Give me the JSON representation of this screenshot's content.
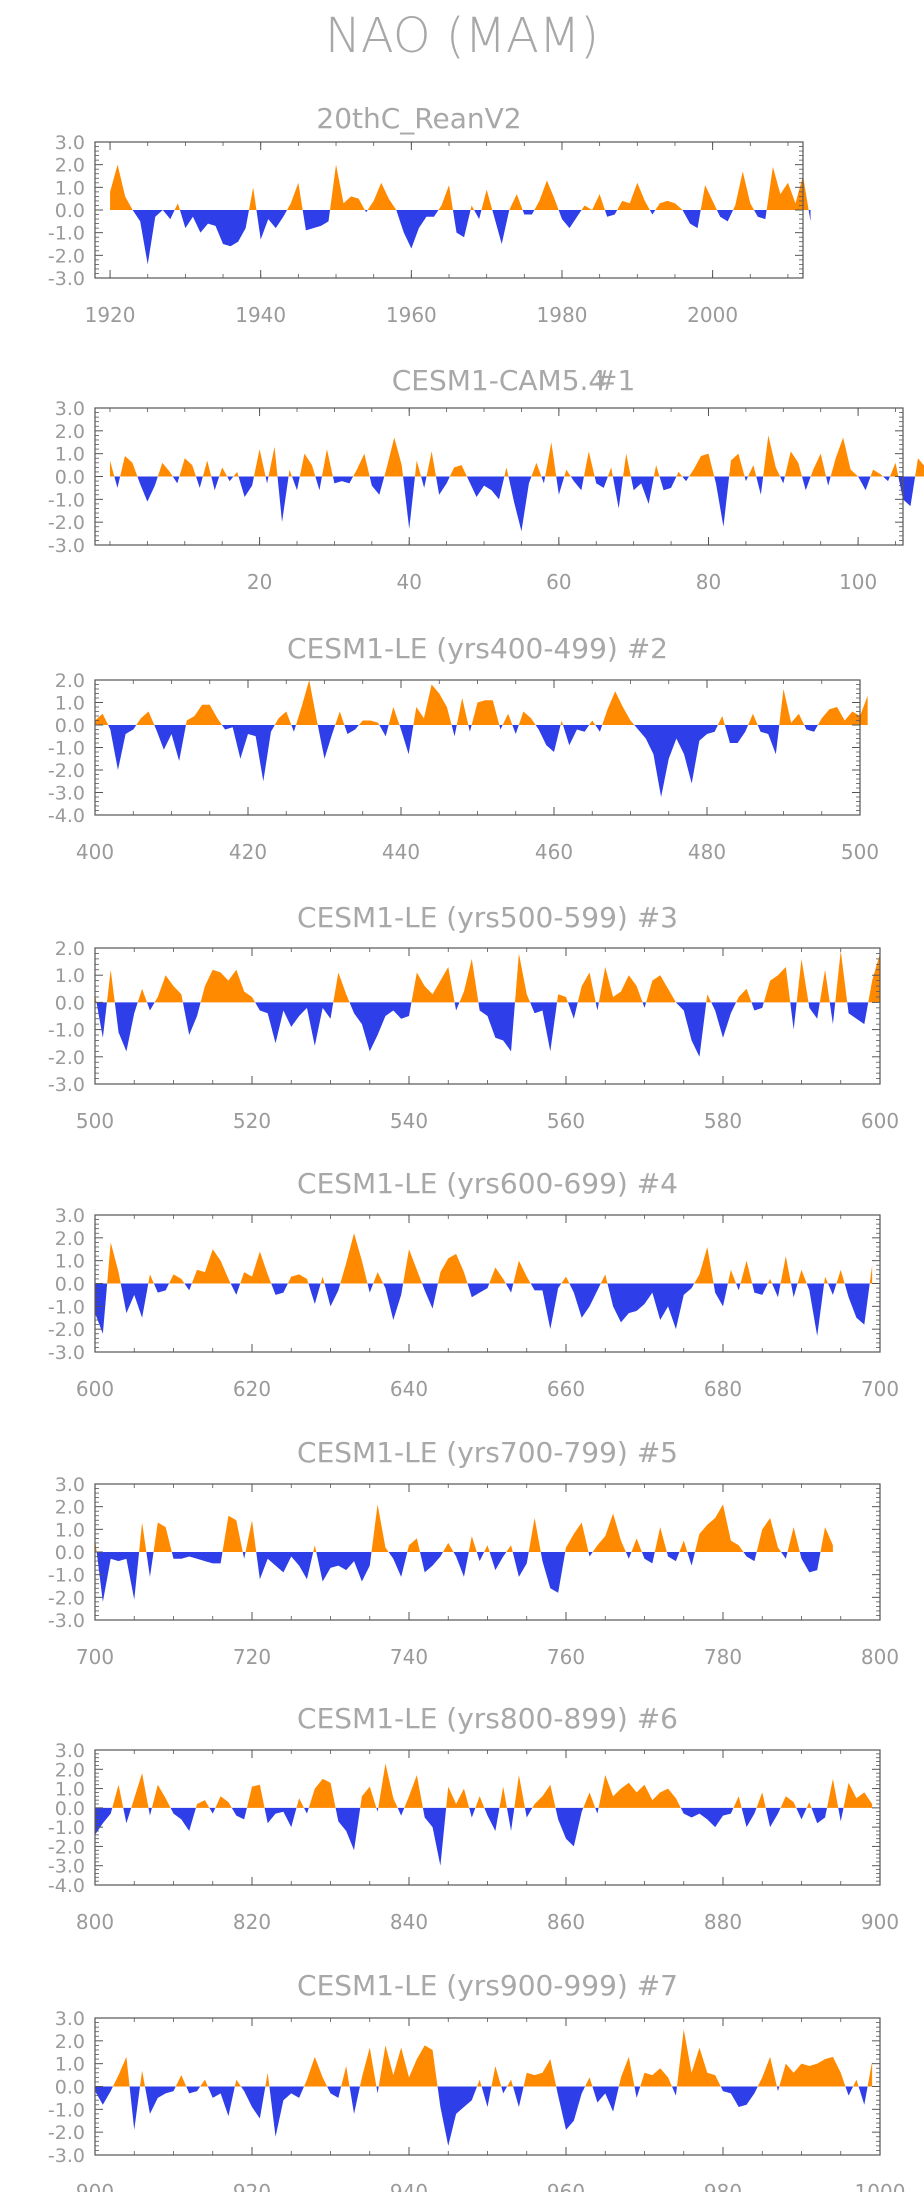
{
  "title": "NAO (MAM)",
  "colors": {
    "positive": "#ff8a00",
    "negative": "#2e3ee8",
    "axis": "#555555",
    "text": "#a8a8a8"
  },
  "chart_data": [
    {
      "type": "area",
      "title": "20thC_ReanV2",
      "xlim": [
        1918,
        2012
      ],
      "ylim": [
        -3.0,
        3.0
      ],
      "yticks": [
        "3.0",
        "2.0",
        "1.0",
        "0.0",
        "-1.0",
        "-2.0",
        "-3.0"
      ],
      "xticks": [
        "1920",
        "1940",
        "1960",
        "1980",
        "2000"
      ],
      "x_start": 1920,
      "values": [
        0.8,
        2.0,
        0.6,
        0.0,
        -0.5,
        -2.4,
        -0.3,
        0.0,
        -0.4,
        0.3,
        -0.8,
        -0.3,
        -1.0,
        -0.6,
        -0.7,
        -1.5,
        -1.6,
        -1.4,
        -0.8,
        1.0,
        -1.3,
        -0.4,
        -0.8,
        -0.3,
        0.3,
        1.2,
        -0.9,
        -0.8,
        -0.7,
        -0.5,
        2.0,
        0.3,
        0.6,
        0.5,
        -0.1,
        0.4,
        1.2,
        0.5,
        0.0,
        -1.0,
        -1.7,
        -0.8,
        -0.3,
        -0.3,
        0.2,
        1.1,
        -1.0,
        -1.2,
        0.2,
        -0.4,
        0.9,
        -0.3,
        -1.5,
        0.0,
        0.7,
        -0.2,
        -0.2,
        0.4,
        1.3,
        0.5,
        -0.4,
        -0.8,
        -0.3,
        0.2,
        0.0,
        0.7,
        -0.3,
        -0.2,
        0.4,
        0.3,
        1.2,
        0.4,
        -0.2,
        0.3,
        0.4,
        0.3,
        0.0,
        -0.6,
        -0.8,
        1.1,
        0.4,
        -0.3,
        -0.5,
        0.2,
        1.7,
        0.3,
        -0.3,
        -0.4,
        1.9,
        0.7,
        1.2,
        0.3,
        1.5,
        -0.5
      ]
    },
    {
      "type": "area",
      "title": "CESM1-CAM5.4",
      "subtitle": "#1",
      "xlim": [
        -2,
        106
      ],
      "ylim": [
        -3.0,
        3.0
      ],
      "yticks": [
        "3.0",
        "2.0",
        "1.0",
        "0.0",
        "-1.0",
        "-2.0",
        "-3.0"
      ],
      "xticks": [
        "20",
        "40",
        "60",
        "80",
        "100"
      ],
      "x_start": 0,
      "values": [
        0.7,
        -0.5,
        0.9,
        0.6,
        -0.3,
        -1.1,
        -0.4,
        0.6,
        0.2,
        -0.3,
        0.8,
        0.5,
        -0.5,
        0.7,
        -0.6,
        0.4,
        -0.2,
        0.2,
        -0.9,
        -0.4,
        1.2,
        -0.3,
        1.3,
        -2.0,
        0.3,
        -0.6,
        1.0,
        0.5,
        -0.6,
        1.2,
        -0.3,
        -0.2,
        -0.3,
        0.3,
        1.0,
        -0.4,
        -0.8,
        0.4,
        1.7,
        0.5,
        -2.3,
        0.7,
        -0.5,
        1.1,
        -0.8,
        -0.3,
        0.4,
        0.5,
        -0.2,
        -0.9,
        -0.4,
        -0.6,
        -1.0,
        0.4,
        -1.1,
        -2.4,
        -0.3,
        0.6,
        -0.3,
        1.5,
        -0.8,
        0.3,
        -0.2,
        -0.6,
        1.1,
        -0.3,
        -0.5,
        0.4,
        -1.4,
        1.0,
        -0.6,
        -0.3,
        -1.2,
        0.5,
        -0.6,
        -0.5,
        0.2,
        -0.2,
        0.3,
        0.9,
        1.0,
        -0.3,
        -2.2,
        0.7,
        1.0,
        -0.2,
        0.5,
        -0.8,
        1.8,
        0.4,
        -0.3,
        1.1,
        0.6,
        -0.6,
        0.3,
        1.0,
        -0.4,
        0.8,
        1.7,
        0.3,
        0.0,
        -0.6,
        0.3,
        0.1,
        -0.2,
        0.6,
        -1.0,
        -1.3,
        0.8,
        0.4
      ]
    },
    {
      "type": "area",
      "title": "CESM1-LE (yrs400-499) #2",
      "xlim": [
        400,
        500
      ],
      "ylim": [
        -4.0,
        2.0
      ],
      "yticks": [
        "2.0",
        "1.0",
        "0.0",
        "-1.0",
        "-2.0",
        "-3.0",
        "-4.0"
      ],
      "xticks": [
        "400",
        "420",
        "440",
        "460",
        "480",
        "500"
      ],
      "x_start": 400,
      "values": [
        0.2,
        0.5,
        -0.2,
        -2.0,
        -0.4,
        -0.2,
        0.3,
        0.6,
        -0.2,
        -1.1,
        -0.4,
        -1.6,
        0.2,
        0.4,
        0.9,
        0.9,
        0.3,
        -0.2,
        -0.1,
        -1.5,
        -0.4,
        -0.5,
        -2.5,
        -0.3,
        0.3,
        0.6,
        -0.3,
        0.8,
        2.0,
        0.2,
        -1.5,
        -0.4,
        0.6,
        -0.4,
        -0.2,
        0.2,
        0.2,
        0.1,
        -0.5,
        0.8,
        -0.2,
        -1.3,
        0.8,
        0.3,
        1.8,
        1.4,
        0.8,
        -0.5,
        1.2,
        -0.3,
        1.0,
        1.1,
        1.1,
        -0.2,
        0.5,
        -0.4,
        0.6,
        0.3,
        -0.2,
        -0.9,
        -1.2,
        0.2,
        -0.9,
        -0.2,
        -0.3,
        0.2,
        -0.3,
        0.7,
        1.5,
        0.8,
        0.2,
        -0.2,
        -0.6,
        -1.3,
        -3.2,
        -1.5,
        -0.6,
        -1.3,
        -2.6,
        -0.7,
        -0.4,
        -0.3,
        0.4,
        -0.8,
        -0.8,
        -0.3,
        0.5,
        -0.3,
        -0.4,
        -1.3,
        1.6,
        0.1,
        0.5,
        -0.2,
        -0.3,
        0.3,
        0.7,
        0.8,
        0.2,
        0.6,
        0.4,
        1.3
      ]
    },
    {
      "type": "area",
      "title": "CESM1-LE (yrs500-599) #3",
      "xlim": [
        500,
        600
      ],
      "ylim": [
        -3.0,
        2.0
      ],
      "yticks": [
        "2.0",
        "1.0",
        "0.0",
        "-1.0",
        "-2.0",
        "-3.0"
      ],
      "xticks": [
        "500",
        "520",
        "540",
        "560",
        "580",
        "600"
      ],
      "x_start": 500,
      "values": [
        0.3,
        -1.3,
        1.2,
        -1.1,
        -1.8,
        -0.4,
        0.5,
        -0.3,
        0.2,
        1.0,
        0.6,
        0.3,
        -1.2,
        -0.5,
        0.6,
        1.2,
        1.1,
        0.8,
        1.2,
        0.4,
        0.2,
        -0.3,
        -0.4,
        -1.5,
        -0.3,
        -0.9,
        -0.5,
        -0.2,
        -1.6,
        -0.2,
        -0.6,
        1.1,
        0.3,
        -0.4,
        -0.8,
        -1.8,
        -1.2,
        -0.5,
        -0.3,
        -0.6,
        -0.5,
        1.1,
        0.6,
        0.3,
        0.8,
        1.3,
        -0.3,
        0.4,
        1.6,
        -0.3,
        -0.5,
        -1.3,
        -1.4,
        -1.8,
        1.8,
        0.3,
        -0.4,
        -0.3,
        -1.8,
        0.3,
        0.2,
        -0.6,
        0.6,
        1.1,
        -0.3,
        1.3,
        0.2,
        0.4,
        1.0,
        0.6,
        -0.2,
        0.8,
        1.0,
        0.5,
        0.0,
        -0.3,
        -1.4,
        -2.0,
        0.3,
        -0.3,
        -1.3,
        -0.4,
        0.2,
        0.5,
        -0.3,
        -0.2,
        0.8,
        1.0,
        1.3,
        -1.0,
        1.6,
        -0.2,
        -0.6,
        1.2,
        -0.8,
        1.9,
        -0.4,
        -0.6,
        -0.8,
        0.8,
        1.8
      ]
    },
    {
      "type": "area",
      "title": "CESM1-LE (yrs600-699) #4",
      "xlim": [
        600,
        700
      ],
      "ylim": [
        -3.0,
        3.0
      ],
      "yticks": [
        "3.0",
        "2.0",
        "1.0",
        "0.0",
        "-1.0",
        "-2.0",
        "-3.0"
      ],
      "xticks": [
        "600",
        "620",
        "640",
        "660",
        "680",
        "700"
      ],
      "x_start": 600,
      "values": [
        -1.3,
        -2.2,
        1.8,
        0.5,
        -1.3,
        -0.5,
        -1.5,
        0.4,
        -0.4,
        -0.3,
        0.4,
        0.2,
        -0.3,
        0.6,
        0.5,
        1.5,
        1.0,
        0.2,
        -0.5,
        0.5,
        0.3,
        1.4,
        0.4,
        -0.5,
        -0.4,
        0.3,
        0.4,
        0.2,
        -0.9,
        0.3,
        -1.0,
        -0.3,
        0.9,
        2.2,
        1.0,
        -0.4,
        0.5,
        -0.2,
        -1.6,
        -0.5,
        1.5,
        0.6,
        -0.3,
        -1.1,
        0.5,
        1.1,
        1.3,
        0.5,
        -0.6,
        -0.4,
        -0.2,
        0.7,
        0.2,
        -0.4,
        1.0,
        0.3,
        -0.3,
        -0.3,
        -2.0,
        -0.2,
        0.3,
        -0.4,
        -1.5,
        -1.0,
        -0.3,
        0.4,
        -1.0,
        -1.7,
        -1.3,
        -1.2,
        -0.9,
        -0.4,
        -1.6,
        -1.0,
        -2.0,
        -0.5,
        -0.2,
        0.4,
        1.6,
        -0.4,
        -1.0,
        0.6,
        -0.3,
        1.0,
        -0.4,
        -0.5,
        0.2,
        -0.6,
        1.2,
        -0.6,
        0.6,
        -0.3,
        -2.3,
        0.3,
        -0.5,
        0.6,
        -0.6,
        -1.5,
        -1.8,
        0.8
      ]
    },
    {
      "type": "area",
      "title": "CESM1-LE (yrs700-799) #5",
      "xlim": [
        700,
        800
      ],
      "ylim": [
        -3.0,
        3.0
      ],
      "yticks": [
        "3.0",
        "2.0",
        "1.0",
        "0.0",
        "-1.0",
        "-2.0",
        "-3.0"
      ],
      "xticks": [
        "700",
        "720",
        "740",
        "760",
        "780",
        "800"
      ],
      "x_start": 700,
      "values": [
        0.6,
        -2.2,
        -0.3,
        -0.4,
        -0.3,
        -2.1,
        1.3,
        -1.1,
        1.3,
        1.1,
        -0.3,
        -0.3,
        -0.2,
        -0.3,
        -0.4,
        -0.5,
        -0.5,
        1.6,
        1.4,
        -0.3,
        1.4,
        -1.2,
        -0.3,
        -0.6,
        -0.9,
        -0.2,
        -0.6,
        -1.2,
        0.3,
        -1.3,
        -0.7,
        -0.6,
        -0.8,
        -0.4,
        -1.3,
        -0.6,
        2.1,
        0.2,
        -0.3,
        -1.1,
        0.3,
        0.6,
        -0.9,
        -0.6,
        -0.2,
        0.4,
        -0.2,
        -1.1,
        0.7,
        -0.4,
        0.3,
        -0.8,
        -0.2,
        0.3,
        -1.1,
        -0.5,
        1.5,
        -0.4,
        -1.6,
        -1.8,
        0.2,
        0.8,
        1.3,
        -0.2,
        0.3,
        0.7,
        1.7,
        0.5,
        -0.3,
        0.6,
        -0.3,
        -0.5,
        1.1,
        -0.2,
        -0.4,
        0.5,
        -0.6,
        0.8,
        1.2,
        1.5,
        2.1,
        0.5,
        0.3,
        -0.2,
        -0.4,
        1.0,
        1.5,
        0.2,
        -0.3,
        1.1,
        -0.3,
        -0.9,
        -0.8,
        1.1,
        0.3
      ]
    },
    {
      "type": "area",
      "title": "CESM1-LE (yrs800-899) #6",
      "xlim": [
        800,
        900
      ],
      "ylim": [
        -4.0,
        3.0
      ],
      "yticks": [
        "3.0",
        "2.0",
        "1.0",
        "0.0",
        "-1.0",
        "-2.0",
        "-3.0",
        "-4.0"
      ],
      "xticks": [
        "800",
        "820",
        "840",
        "860",
        "880",
        "900"
      ],
      "x_start": 800,
      "values": [
        -1.4,
        -0.8,
        -0.3,
        1.2,
        -0.8,
        0.5,
        1.8,
        -0.4,
        1.2,
        0.5,
        -0.3,
        -0.6,
        -1.2,
        0.2,
        0.4,
        -0.3,
        0.6,
        0.3,
        -0.4,
        -0.6,
        1.1,
        1.2,
        -0.8,
        -0.3,
        -0.2,
        -1.0,
        0.5,
        -0.3,
        1.0,
        1.5,
        1.3,
        -0.7,
        -1.2,
        -2.2,
        0.6,
        1.1,
        -0.2,
        2.3,
        0.5,
        -0.4,
        0.6,
        1.7,
        -0.5,
        -1.0,
        -3.0,
        1.1,
        0.2,
        1.0,
        -0.5,
        0.6,
        -0.4,
        -1.2,
        1.1,
        -1.2,
        1.7,
        -0.5,
        0.2,
        0.6,
        1.2,
        -0.6,
        -1.6,
        -2.0,
        -0.2,
        0.8,
        -0.3,
        1.7,
        0.6,
        1.0,
        1.3,
        0.8,
        1.2,
        0.4,
        0.8,
        1.0,
        0.5,
        -0.3,
        -0.5,
        -0.3,
        -0.6,
        -1.0,
        -0.4,
        -0.3,
        0.6,
        -1.0,
        -0.3,
        0.8,
        -1.0,
        -0.3,
        0.6,
        0.3,
        -0.6,
        0.3,
        -0.8,
        -0.5,
        1.5,
        -0.7,
        1.3,
        0.5,
        0.8,
        0.2
      ]
    },
    {
      "type": "area",
      "title": "CESM1-LE (yrs900-999) #7",
      "xlim": [
        900,
        1000
      ],
      "ylim": [
        -3.0,
        3.0
      ],
      "yticks": [
        "3.0",
        "2.0",
        "1.0",
        "0.0",
        "-1.0",
        "-2.0",
        "-3.0"
      ],
      "xticks": [
        "900",
        "920",
        "940",
        "960",
        "980",
        "1000"
      ],
      "x_start": 900,
      "values": [
        -0.2,
        -0.8,
        -0.2,
        0.5,
        1.3,
        -1.9,
        0.7,
        -1.2,
        -0.5,
        -0.3,
        -0.2,
        0.5,
        -0.3,
        -0.2,
        0.3,
        -0.5,
        -0.3,
        -1.3,
        0.3,
        -0.2,
        -0.9,
        -1.4,
        0.6,
        -2.2,
        -0.6,
        -0.3,
        -0.5,
        0.3,
        1.3,
        0.4,
        -0.3,
        -0.5,
        0.9,
        -1.2,
        0.4,
        1.7,
        -0.3,
        1.8,
        0.5,
        1.7,
        0.4,
        1.2,
        1.8,
        1.6,
        -0.9,
        -2.6,
        -1.2,
        -0.9,
        -0.6,
        0.3,
        -0.9,
        0.9,
        -0.3,
        0.3,
        -0.9,
        0.6,
        0.5,
        0.6,
        1.2,
        -0.4,
        -1.9,
        -1.5,
        -0.3,
        0.4,
        -0.7,
        -0.3,
        -1.1,
        0.4,
        1.3,
        -0.5,
        0.6,
        0.5,
        0.8,
        0.4,
        -0.4,
        2.5,
        0.6,
        1.7,
        0.6,
        0.5,
        -0.2,
        -0.3,
        -0.9,
        -0.8,
        -0.3,
        0.4,
        1.3,
        -0.2,
        1.0,
        0.6,
        1.0,
        0.9,
        1.0,
        1.2,
        1.3,
        0.6,
        -0.4,
        0.3,
        -0.8,
        1.1
      ]
    }
  ]
}
